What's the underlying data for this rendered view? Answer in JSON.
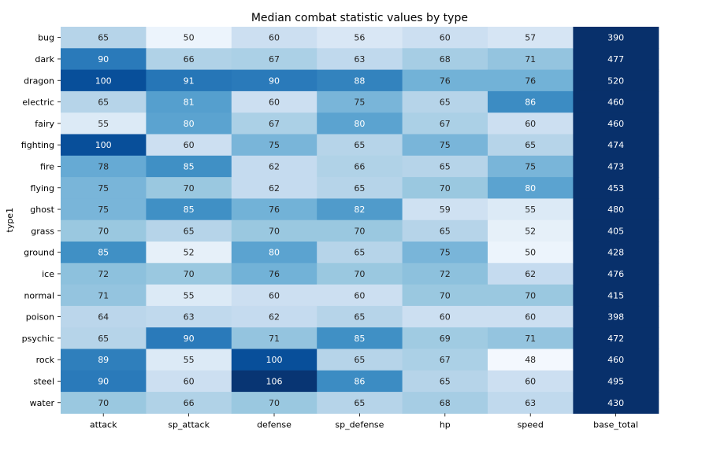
{
  "chart_data": {
    "type": "heatmap",
    "title": "Median combat statistic values by type",
    "ylabel": "type1",
    "xlabel": "",
    "colormap": "Blues",
    "colorbar": false,
    "x": [
      "attack",
      "sp_attack",
      "defense",
      "sp_defense",
      "hp",
      "speed",
      "base_total"
    ],
    "y": [
      "bug",
      "dark",
      "dragon",
      "electric",
      "fairy",
      "fighting",
      "fire",
      "flying",
      "ghost",
      "grass",
      "ground",
      "ice",
      "normal",
      "poison",
      "psychic",
      "rock",
      "steel",
      "water"
    ],
    "values": [
      [
        65,
        50,
        60,
        56,
        60,
        57,
        390
      ],
      [
        90,
        66,
        67,
        63,
        68,
        71,
        477
      ],
      [
        100,
        91,
        90,
        88,
        76,
        76,
        520
      ],
      [
        65,
        81,
        60,
        75,
        65,
        86,
        460
      ],
      [
        55,
        80,
        67,
        80,
        67,
        60,
        460
      ],
      [
        100,
        60,
        75,
        65,
        75,
        65,
        474
      ],
      [
        78,
        85,
        62,
        66,
        65,
        75,
        473
      ],
      [
        75,
        70,
        62,
        65,
        70,
        80,
        453
      ],
      [
        75,
        85,
        76,
        82,
        59,
        55,
        480
      ],
      [
        70,
        65,
        70,
        70,
        65,
        52,
        405
      ],
      [
        85,
        52,
        80,
        65,
        75,
        50,
        428
      ],
      [
        72,
        70,
        76,
        70,
        72,
        62,
        476
      ],
      [
        71,
        55,
        60,
        60,
        70,
        70,
        415
      ],
      [
        64,
        63,
        62,
        65,
        60,
        60,
        398
      ],
      [
        65,
        90,
        71,
        85,
        69,
        71,
        472
      ],
      [
        89,
        55,
        100,
        65,
        67,
        48,
        460
      ],
      [
        90,
        60,
        106,
        86,
        65,
        60,
        495
      ],
      [
        70,
        66,
        70,
        65,
        68,
        63,
        430
      ]
    ]
  }
}
